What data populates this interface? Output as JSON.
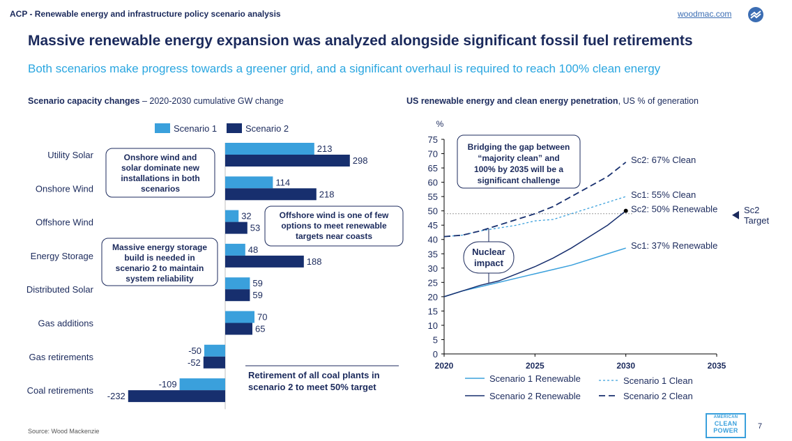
{
  "header": {
    "title": "ACP - Renewable energy and infrastructure policy scenario analysis",
    "link": "woodmac.com"
  },
  "main_title": "Massive renewable energy expansion was analyzed alongside significant fossil fuel retirements",
  "subtitle": "Both scenarios make progress towards a greener grid, and a significant overhaul is required to reach 100% clean  energy",
  "left_heading": {
    "bold": "Scenario capacity changes",
    "rest": " – 2020-2030 cumulative GW change"
  },
  "right_heading": {
    "bold": "US renewable energy and clean energy penetration",
    "rest": ", US % of generation"
  },
  "source": "Source: Wood Mackenzie",
  "page_number": "7",
  "acp_logo": {
    "line1": "AMERICAN",
    "line2": "CLEAN",
    "line3": "POWER"
  },
  "colors": {
    "scenario1": "#3aa0dc",
    "scenario2": "#172f6e",
    "accent": "#2aa6e0"
  },
  "chart_data": [
    {
      "type": "bar",
      "orientation": "horizontal",
      "categories": [
        "Utility Solar",
        "Onshore Wind",
        "Offshore Wind",
        "Energy Storage",
        "Distributed Solar",
        "Gas additions",
        "Gas retirements",
        "Coal retirements"
      ],
      "series": [
        {
          "name": "Scenario 1",
          "values": [
            213,
            114,
            32,
            48,
            59,
            70,
            -50,
            -109
          ]
        },
        {
          "name": "Scenario 2",
          "values": [
            298,
            218,
            53,
            188,
            59,
            65,
            -52,
            -232
          ]
        }
      ],
      "annotations": [
        "Onshore wind and solar dominate new installations in both scenarios",
        "Offshore wind is one of few options to meet renewable targets near coasts",
        "Massive energy storage build is needed in scenario 2 to maintain system reliability",
        "Retirement of all coal plants in scenario 2 to meet 50% target"
      ],
      "legend": "top"
    },
    {
      "type": "line",
      "ylabel": "%",
      "xlim": [
        2020,
        2035
      ],
      "ylim": [
        0,
        75
      ],
      "xticks": [
        2020,
        2025,
        2030,
        2035
      ],
      "yticks": [
        0,
        5,
        10,
        15,
        20,
        25,
        30,
        35,
        40,
        45,
        50,
        55,
        60,
        65,
        70,
        75
      ],
      "series": [
        {
          "name": "Scenario 1 Renewable",
          "style": "solid",
          "x": [
            2020,
            2021,
            2022,
            2023,
            2024,
            2025,
            2026,
            2027,
            2028,
            2029,
            2030
          ],
          "y": [
            20,
            22,
            23.5,
            25,
            26.5,
            28,
            29.5,
            31,
            33,
            35,
            37
          ]
        },
        {
          "name": "Scenario 1 Clean",
          "style": "dotted",
          "x": [
            2020,
            2021,
            2022,
            2023,
            2024,
            2025,
            2026,
            2027,
            2028,
            2029,
            2030
          ],
          "y": [
            41,
            41.5,
            43,
            44,
            45,
            46.5,
            47,
            49,
            51,
            53,
            55
          ]
        },
        {
          "name": "Scenario 2 Renewable",
          "style": "solid",
          "x": [
            2020,
            2021,
            2022,
            2023,
            2024,
            2025,
            2026,
            2027,
            2028,
            2029,
            2030
          ],
          "y": [
            20,
            22,
            24,
            25.5,
            28,
            30.5,
            33.5,
            37,
            41,
            45,
            50
          ]
        },
        {
          "name": "Scenario 2 Clean",
          "style": "dashed",
          "x": [
            2020,
            2021,
            2022,
            2023,
            2024,
            2025,
            2026,
            2027,
            2028,
            2029,
            2030
          ],
          "y": [
            41,
            41.5,
            43,
            45,
            47,
            49,
            51.5,
            55,
            58.5,
            62,
            67
          ]
        }
      ],
      "reference_line": {
        "y": 49,
        "label": "Sc2 Target"
      },
      "end_labels": [
        "Sc2: 67% Clean",
        "Sc1: 55% Clean",
        "Sc2: 50% Renewable",
        "Sc1: 37% Renewable"
      ],
      "annotations": [
        "Bridging the gap between “majority clean” and 100% by 2035 will be a significant challenge",
        "Nuclear impact"
      ],
      "legend": "bottom"
    }
  ]
}
